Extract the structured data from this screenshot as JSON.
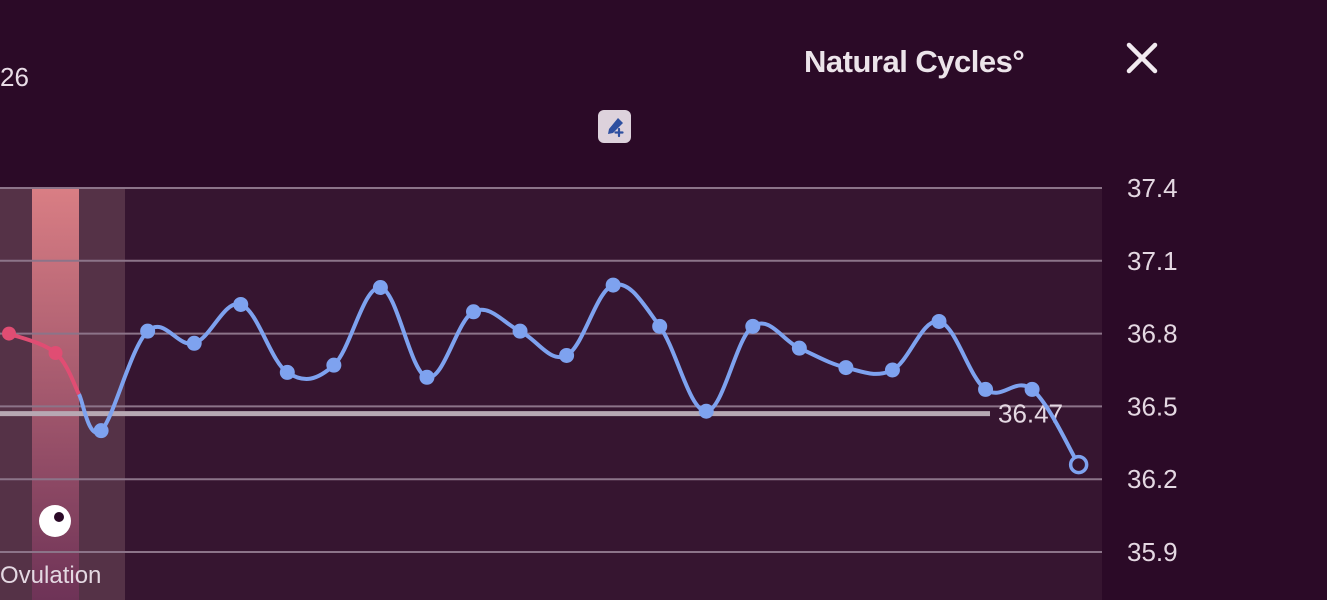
{
  "header": {
    "day_number": "26",
    "brand": "Natural Cycles°",
    "close_icon": "close-icon",
    "add_icon": "thermometer-add-icon"
  },
  "colors": {
    "background": "#2b0a27",
    "plot_background": "#361530",
    "line": "#7ea2ef",
    "period_line": "#e04d73",
    "ovulation_band": "#c97a86",
    "fertile_band": "#553247"
  },
  "chart_data": {
    "type": "line",
    "yticks": [
      "37.4",
      "37.1",
      "36.8",
      "36.5",
      "36.2",
      "35.9"
    ],
    "ylim": [
      35.9,
      37.4
    ],
    "grid": true,
    "coverline": {
      "value": 36.47,
      "label": "36.47"
    },
    "ovulation_label": "Ovulation",
    "series": [
      {
        "values": [
          36.8,
          36.72,
          36.4
        ]
      },
      {
        "values": [
          36.4,
          36.81,
          36.76,
          36.92,
          36.64,
          36.67,
          36.99,
          36.62,
          36.89,
          36.81,
          36.71,
          37.0,
          36.83,
          36.48,
          36.83,
          36.74,
          36.66,
          36.65,
          36.85,
          36.57,
          36.57,
          36.26
        ]
      }
    ]
  }
}
